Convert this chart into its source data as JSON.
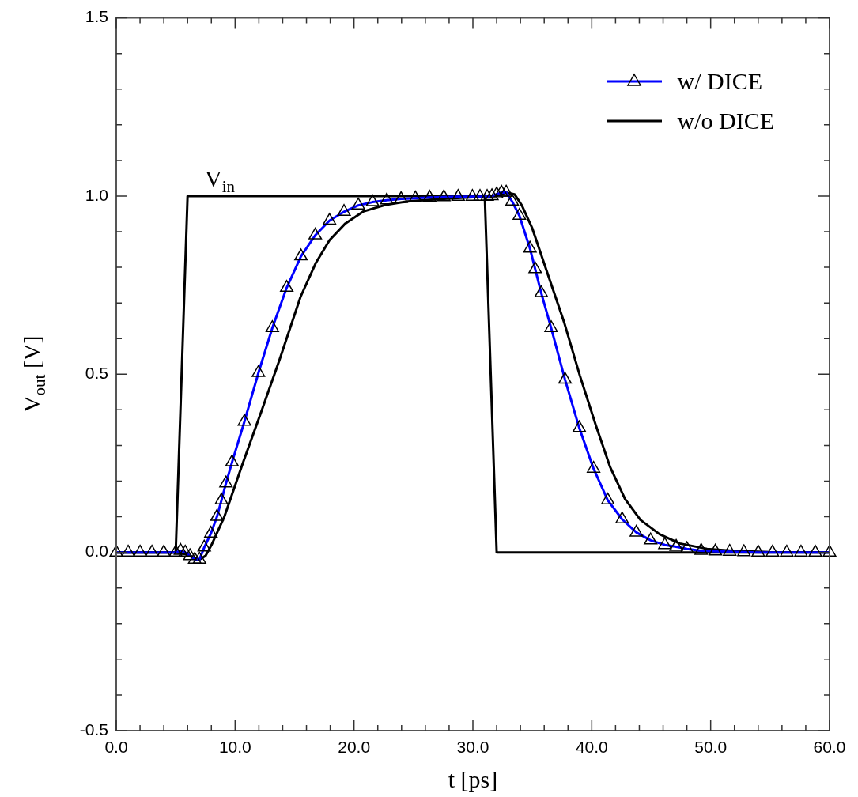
{
  "chart_data": {
    "type": "line",
    "xlabel": "t [ps]",
    "ylabel": "V$_{out}$ [V]",
    "legend": "top right",
    "marker": "none",
    "line_style": "solid",
    "xlim": [
      0,
      60
    ],
    "ylim": [
      -0.5,
      1.5
    ],
    "xticks": [
      {
        "value": 0,
        "label": "0.0"
      },
      {
        "value": 2,
        "label": null
      },
      {
        "value": 4,
        "label": null
      },
      {
        "value": 6,
        "label": null
      },
      {
        "value": 8,
        "label": null
      },
      {
        "value": 10,
        "label": "10.0"
      },
      {
        "value": 12,
        "label": null
      },
      {
        "value": 14,
        "label": null
      },
      {
        "value": 16,
        "label": null
      },
      {
        "value": 18,
        "label": null
      },
      {
        "value": 20,
        "label": "20.0"
      },
      {
        "value": 22,
        "label": null
      },
      {
        "value": 24,
        "label": null
      },
      {
        "value": 26,
        "label": null
      },
      {
        "value": 28,
        "label": null
      },
      {
        "value": 30,
        "label": "30.0"
      },
      {
        "value": 32,
        "label": null
      },
      {
        "value": 34,
        "label": null
      },
      {
        "value": 36,
        "label": null
      },
      {
        "value": 38,
        "label": null
      },
      {
        "value": 40,
        "label": "40.0"
      },
      {
        "value": 42,
        "label": null
      },
      {
        "value": 44,
        "label": null
      },
      {
        "value": 46,
        "label": null
      },
      {
        "value": 48,
        "label": null
      },
      {
        "value": 50,
        "label": "50.0"
      },
      {
        "value": 52,
        "label": null
      },
      {
        "value": 54,
        "label": null
      },
      {
        "value": 56,
        "label": null
      },
      {
        "value": 58,
        "label": null
      },
      {
        "value": 60,
        "label": "60.0"
      }
    ],
    "yticks": [
      {
        "value": -0.5,
        "label": "-0.5"
      },
      {
        "value": -0.4,
        "label": null
      },
      {
        "value": -0.3,
        "label": null
      },
      {
        "value": -0.2,
        "label": null
      },
      {
        "value": -0.1,
        "label": null
      },
      {
        "value": 0,
        "label": "0.0"
      },
      {
        "value": 0.1,
        "label": null
      },
      {
        "value": 0.2,
        "label": null
      },
      {
        "value": 0.3,
        "label": null
      },
      {
        "value": 0.4,
        "label": null
      },
      {
        "value": 0.5,
        "label": "0.5"
      },
      {
        "value": 0.6,
        "label": null
      },
      {
        "value": 0.7,
        "label": null
      },
      {
        "value": 0.8,
        "label": null
      },
      {
        "value": 0.9,
        "label": null
      },
      {
        "value": 1.0,
        "label": "1.0"
      },
      {
        "value": 1.1,
        "label": null
      },
      {
        "value": 1.2,
        "label": null
      },
      {
        "value": 1.3,
        "label": null
      },
      {
        "value": 1.4,
        "label": null
      },
      {
        "value": 1.5,
        "label": "1.5"
      }
    ],
    "annotations": [
      "V$_{in}$"
    ],
    "series": [
      {
        "name": "w/ DICE",
        "color": "#0000ff",
        "marker": "triangle",
        "x": [
          0,
          1,
          2,
          3,
          4,
          5,
          5.4,
          5.8,
          6.2,
          6.6,
          7.0,
          7.4,
          7.96,
          8.47,
          8.85,
          9.23,
          9.74,
          10.78,
          11.96,
          13.13,
          14.34,
          15.54,
          16.74,
          17.94,
          19.16,
          20.36,
          21.56,
          22.76,
          23.96,
          25.16,
          26.36,
          27.56,
          28.76,
          29.96,
          30.6,
          31.2,
          31.6,
          32.0,
          32.4,
          32.8,
          33.3,
          33.91,
          34.8,
          35.24,
          35.75,
          36.58,
          37.75,
          38.95,
          40.15,
          41.35,
          42.55,
          43.75,
          44.95,
          46.15,
          47.1,
          48.0,
          49.2,
          50.4,
          51.6,
          52.8,
          54.0,
          55.2,
          56.4,
          57.6,
          58.8,
          60
        ],
        "values": [
          0,
          0,
          0,
          0,
          0,
          0,
          0.005,
          0,
          -0.01,
          -0.02,
          -0.02,
          0.014,
          0.053,
          0.1,
          0.146,
          0.194,
          0.253,
          0.367,
          0.504,
          0.63,
          0.743,
          0.831,
          0.89,
          0.931,
          0.956,
          0.974,
          0.983,
          0.988,
          0.992,
          0.994,
          0.996,
          0.997,
          0.998,
          0.998,
          0.998,
          0.998,
          1.0,
          1.005,
          1.01,
          1.01,
          0.985,
          0.945,
          0.853,
          0.795,
          0.728,
          0.63,
          0.485,
          0.349,
          0.235,
          0.146,
          0.093,
          0.056,
          0.034,
          0.021,
          0.016,
          0.01,
          0.005,
          0.003,
          0.002,
          0.001,
          0,
          0,
          0,
          0,
          0,
          0
        ]
      },
      {
        "name": "w/o DICE",
        "color": "#000000",
        "x": [
          0,
          5,
          6,
          6.5,
          7,
          7.5,
          8,
          9.07,
          10.6,
          12.18,
          13.73,
          15.5,
          16.8,
          17.94,
          19.27,
          20.8,
          22.6,
          24.5,
          26.5,
          29,
          31,
          32,
          32.8,
          33.5,
          34.1,
          35,
          36.35,
          37.7,
          39,
          40.35,
          41.55,
          42.8,
          44.1,
          45.7,
          47.4,
          49.7,
          52,
          55,
          60
        ],
        "values": [
          0,
          0,
          -0.005,
          -0.015,
          -0.02,
          -0.01,
          0.02,
          0.098,
          0.246,
          0.393,
          0.54,
          0.717,
          0.813,
          0.876,
          0.923,
          0.957,
          0.975,
          0.985,
          0.99,
          0.995,
          0.998,
          1.0,
          1.01,
          1.005,
          0.975,
          0.909,
          0.776,
          0.643,
          0.496,
          0.356,
          0.239,
          0.15,
          0.091,
          0.051,
          0.025,
          0.01,
          0.004,
          0.001,
          0
        ]
      },
      {
        "color": "#000000",
        "x": [
          0,
          5,
          6,
          31,
          32,
          60
        ],
        "values": [
          0,
          0,
          1,
          1,
          0,
          0
        ]
      }
    ]
  }
}
